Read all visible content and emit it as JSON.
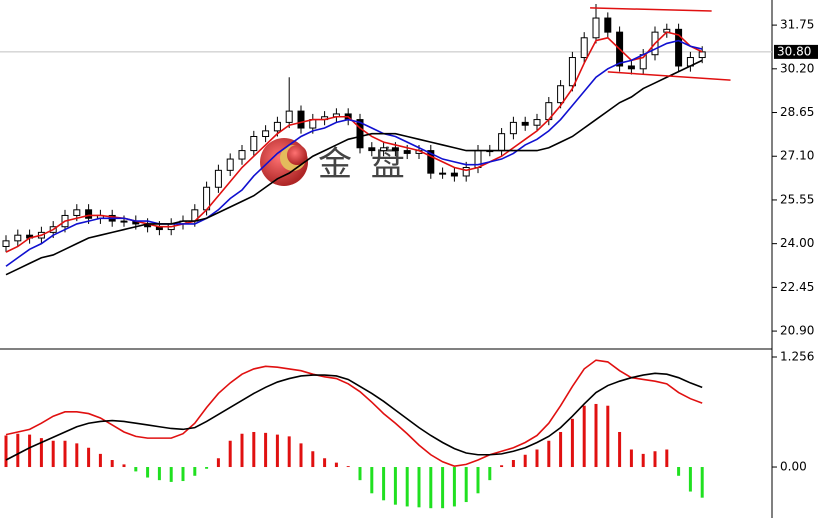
{
  "chart_data": [
    {
      "type": "candlestick",
      "watermark": "金 盘",
      "open": [
        23.9,
        24.1,
        24.3,
        24.2,
        24.4,
        24.6,
        25.0,
        25.2,
        24.9,
        25.0,
        24.8,
        24.8,
        24.7,
        24.6,
        24.5,
        24.7,
        24.8,
        25.2,
        26.0,
        26.6,
        27.0,
        27.3,
        27.8,
        28.0,
        28.3,
        28.7,
        28.1,
        28.4,
        28.5,
        28.6,
        28.4,
        27.4,
        27.3,
        27.4,
        27.3,
        27.2,
        27.3,
        26.5,
        26.5,
        26.4,
        26.7,
        27.3,
        27.3,
        27.9,
        28.3,
        28.2,
        28.4,
        29.0,
        29.6,
        30.6,
        31.3,
        32.0,
        31.5,
        30.3,
        30.2,
        30.7,
        31.5,
        31.6,
        30.3,
        30.6
      ],
      "high": [
        24.3,
        24.5,
        24.5,
        24.6,
        24.8,
        25.2,
        25.4,
        25.4,
        25.2,
        25.2,
        25.0,
        25.0,
        24.9,
        24.8,
        24.9,
        25.0,
        25.4,
        26.2,
        26.8,
        27.2,
        27.5,
        28.0,
        28.2,
        28.5,
        29.9,
        28.9,
        28.6,
        28.7,
        28.8,
        28.8,
        28.6,
        27.6,
        27.6,
        27.6,
        27.5,
        27.5,
        27.5,
        26.7,
        26.7,
        26.9,
        27.5,
        27.5,
        28.1,
        28.5,
        28.5,
        28.6,
        29.2,
        29.8,
        30.8,
        31.5,
        32.5,
        32.2,
        31.7,
        30.5,
        30.9,
        31.7,
        31.8,
        31.8,
        30.8,
        31.0
      ],
      "low": [
        23.7,
        23.9,
        24.0,
        24.0,
        24.2,
        24.4,
        24.8,
        24.7,
        24.7,
        24.6,
        24.6,
        24.5,
        24.4,
        24.3,
        24.3,
        24.5,
        24.6,
        25.0,
        25.8,
        26.4,
        26.8,
        27.1,
        27.6,
        27.8,
        28.1,
        27.9,
        27.9,
        28.2,
        28.3,
        28.2,
        27.2,
        27.1,
        27.1,
        27.1,
        27.0,
        27.0,
        26.3,
        26.3,
        26.2,
        26.2,
        26.5,
        27.1,
        27.1,
        27.7,
        28.0,
        28.0,
        28.2,
        28.8,
        29.4,
        30.4,
        31.1,
        31.3,
        30.1,
        30.0,
        30.0,
        30.5,
        31.3,
        30.1,
        30.1,
        30.4
      ],
      "close": [
        24.1,
        24.3,
        24.2,
        24.4,
        24.6,
        25.0,
        25.2,
        24.9,
        25.0,
        24.8,
        24.8,
        24.7,
        24.6,
        24.5,
        24.7,
        24.8,
        25.2,
        26.0,
        26.6,
        27.0,
        27.3,
        27.8,
        28.0,
        28.3,
        28.7,
        28.1,
        28.4,
        28.5,
        28.6,
        28.4,
        27.4,
        27.3,
        27.4,
        27.3,
        27.2,
        27.3,
        26.5,
        26.5,
        26.4,
        26.7,
        27.3,
        27.3,
        27.9,
        28.3,
        28.2,
        28.4,
        29.0,
        29.6,
        30.6,
        31.3,
        32.0,
        31.5,
        30.3,
        30.2,
        30.7,
        31.5,
        31.6,
        30.3,
        30.6,
        30.8
      ],
      "series": [
        {
          "color": "#e01010",
          "values": [
            23.7,
            23.9,
            24.2,
            24.3,
            24.5,
            24.8,
            24.9,
            25.0,
            25.0,
            24.95,
            24.9,
            24.8,
            24.7,
            24.6,
            24.6,
            24.7,
            24.8,
            25.2,
            25.7,
            26.2,
            26.7,
            27.1,
            27.5,
            27.9,
            28.2,
            28.3,
            28.4,
            28.4,
            28.5,
            28.5,
            28.1,
            27.8,
            27.6,
            27.5,
            27.4,
            27.3,
            27.1,
            26.9,
            26.7,
            26.6,
            26.7,
            26.9,
            27.1,
            27.4,
            27.7,
            28.0,
            28.4,
            28.9,
            29.5,
            30.4,
            31.2,
            31.3,
            30.9,
            30.5,
            30.6,
            31.1,
            31.5,
            31.4,
            31.0,
            30.8
          ]
        },
        {
          "color": "#1010d0",
          "values": [
            23.2,
            23.5,
            23.8,
            24.0,
            24.3,
            24.5,
            24.7,
            24.8,
            24.9,
            24.9,
            24.9,
            24.8,
            24.8,
            24.7,
            24.7,
            24.7,
            24.7,
            24.9,
            25.2,
            25.6,
            25.9,
            26.4,
            26.8,
            27.2,
            27.5,
            27.8,
            28.0,
            28.1,
            28.3,
            28.4,
            28.3,
            28.1,
            27.9,
            27.8,
            27.6,
            27.4,
            27.2,
            27.0,
            26.9,
            26.8,
            26.8,
            26.9,
            27.0,
            27.2,
            27.5,
            27.7,
            28.0,
            28.4,
            28.9,
            29.4,
            29.9,
            30.2,
            30.4,
            30.5,
            30.7,
            30.9,
            31.1,
            31.2,
            31.0,
            30.9
          ]
        },
        {
          "color": "#000000",
          "values": [
            22.9,
            23.1,
            23.3,
            23.5,
            23.6,
            23.8,
            24.0,
            24.2,
            24.3,
            24.4,
            24.5,
            24.6,
            24.7,
            24.7,
            24.7,
            24.8,
            24.8,
            24.9,
            25.1,
            25.3,
            25.5,
            25.7,
            26.0,
            26.3,
            26.5,
            26.8,
            27.1,
            27.3,
            27.5,
            27.7,
            27.8,
            27.9,
            27.9,
            27.9,
            27.8,
            27.7,
            27.6,
            27.5,
            27.4,
            27.3,
            27.3,
            27.3,
            27.3,
            27.3,
            27.3,
            27.3,
            27.4,
            27.6,
            27.8,
            28.1,
            28.4,
            28.7,
            29.0,
            29.2,
            29.5,
            29.7,
            29.9,
            30.1,
            30.3,
            30.5
          ]
        }
      ],
      "trendlines": [
        {
          "color": "#e01010",
          "x": [
            49.5,
            59.8
          ],
          "y": [
            32.36,
            32.25
          ]
        },
        {
          "color": "#e01010",
          "x": [
            51,
            61.4
          ],
          "y": [
            30.09,
            29.8
          ]
        }
      ],
      "current_price": {
        "value": 30.8,
        "label": "30.80"
      },
      "ylim": [
        20.3,
        32.64
      ],
      "yticks": [
        {
          "value": 20.9,
          "label": "20.90"
        },
        22.45,
        {
          "value": 24.0,
          "label": "24.00"
        },
        25.55,
        {
          "value": 27.1,
          "label": "27.10"
        },
        28.65,
        {
          "value": 30.2,
          "label": "30.20"
        },
        31.75
      ]
    },
    {
      "type": "macd",
      "histogram": [
        0.36,
        0.38,
        0.37,
        0.33,
        0.3,
        0.3,
        0.27,
        0.22,
        0.15,
        0.08,
        0.03,
        -0.05,
        -0.12,
        -0.15,
        -0.17,
        -0.16,
        -0.1,
        -0.02,
        0.1,
        0.3,
        0.38,
        0.4,
        0.39,
        0.37,
        0.35,
        0.27,
        0.18,
        0.1,
        0.05,
        0.01,
        -0.15,
        -0.3,
        -0.38,
        -0.43,
        -0.45,
        -0.46,
        -0.47,
        -0.47,
        -0.45,
        -0.4,
        -0.3,
        -0.15,
        0.02,
        0.08,
        0.14,
        0.2,
        0.3,
        0.4,
        0.55,
        0.7,
        0.72,
        0.7,
        0.4,
        0.2,
        0.15,
        0.18,
        0.2,
        -0.1,
        -0.28,
        -0.35
      ],
      "positive_color": "#e01010",
      "negative_color": "#20e020",
      "series": [
        {
          "color": "#e01010",
          "values": [
            0.37,
            0.4,
            0.43,
            0.5,
            0.58,
            0.63,
            0.63,
            0.61,
            0.56,
            0.48,
            0.4,
            0.35,
            0.33,
            0.33,
            0.33,
            0.38,
            0.5,
            0.68,
            0.84,
            0.96,
            1.06,
            1.12,
            1.15,
            1.14,
            1.12,
            1.1,
            1.06,
            1.03,
            1.01,
            0.95,
            0.86,
            0.74,
            0.61,
            0.5,
            0.38,
            0.25,
            0.14,
            0.06,
            0.01,
            0.03,
            0.08,
            0.14,
            0.18,
            0.22,
            0.28,
            0.36,
            0.5,
            0.7,
            0.92,
            1.12,
            1.22,
            1.2,
            1.1,
            1.02,
            1.0,
            0.98,
            0.95,
            0.85,
            0.78,
            0.73
          ]
        },
        {
          "color": "#000000",
          "values": [
            0.08,
            0.15,
            0.22,
            0.28,
            0.34,
            0.4,
            0.46,
            0.5,
            0.52,
            0.53,
            0.52,
            0.5,
            0.48,
            0.46,
            0.44,
            0.43,
            0.45,
            0.52,
            0.6,
            0.68,
            0.76,
            0.84,
            0.91,
            0.97,
            1.01,
            1.04,
            1.05,
            1.05,
            1.04,
            1.0,
            0.92,
            0.84,
            0.75,
            0.65,
            0.55,
            0.45,
            0.36,
            0.28,
            0.21,
            0.16,
            0.14,
            0.14,
            0.15,
            0.18,
            0.22,
            0.28,
            0.35,
            0.45,
            0.58,
            0.72,
            0.85,
            0.93,
            0.98,
            1.02,
            1.05,
            1.07,
            1.06,
            1.02,
            0.96,
            0.91
          ]
        }
      ],
      "ylim": [
        -0.582,
        1.336
      ],
      "yticks": [
        {
          "value": 0,
          "label": "0.00"
        },
        1.256
      ]
    }
  ]
}
